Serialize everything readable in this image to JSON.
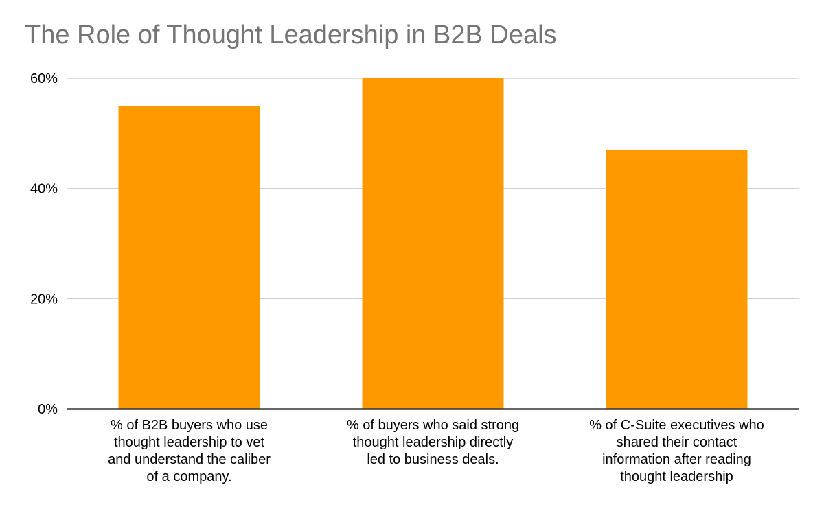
{
  "chart_data": {
    "type": "bar",
    "title": "The Role of Thought Leadership in B2B Deals",
    "xlabel": "",
    "ylabel": "",
    "categories": [
      [
        "% of B2B buyers who use",
        "thought leadership to vet",
        "and understand the caliber",
        "of a company."
      ],
      [
        "% of buyers who said strong",
        "thought leadership directly",
        "led to business deals."
      ],
      [
        "% of C-Suite executives who",
        "shared their contact",
        "information after reading",
        "thought leadership"
      ]
    ],
    "values": [
      55,
      60,
      47
    ],
    "ylim": [
      0,
      60
    ],
    "yticks": [
      0,
      20,
      40,
      60
    ],
    "ytick_labels": [
      "0%",
      "20%",
      "40%",
      "60%"
    ],
    "grid": true,
    "legend": "none",
    "colors": {
      "bar": "#FF9900",
      "grid": "#CCCCCC",
      "axis": "#333333",
      "title": "#757575"
    }
  }
}
